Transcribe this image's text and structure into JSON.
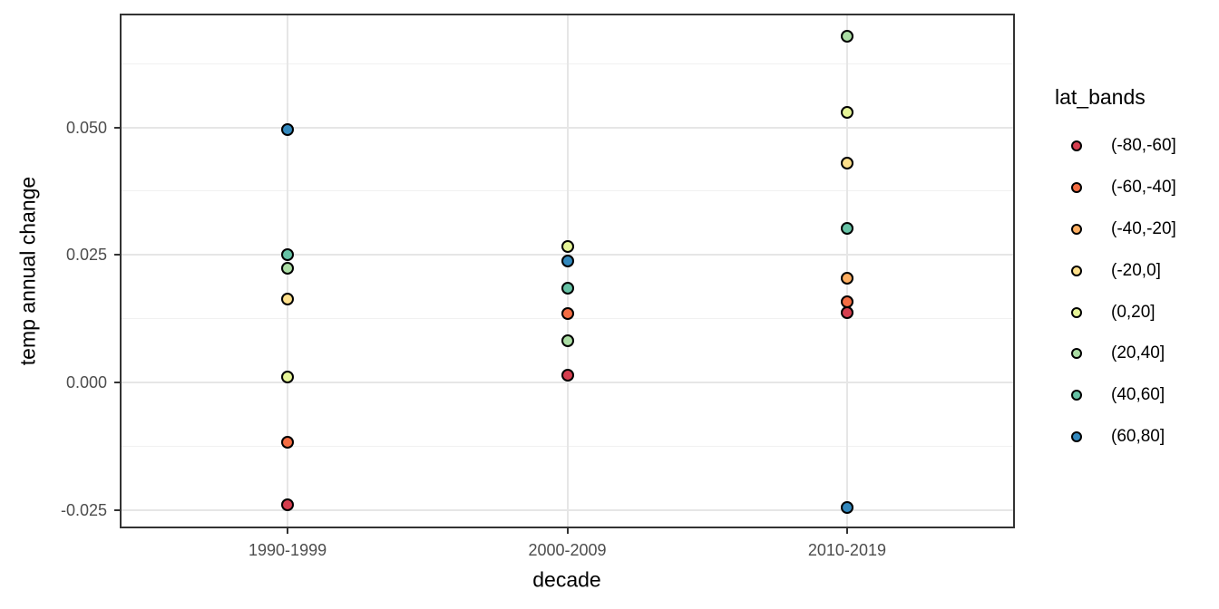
{
  "colors": {
    "background": "#ffffff",
    "panel_border": "#333333",
    "grid_major": "#e6e6e6",
    "grid_minor": "#f1f1f1",
    "tick": "#333333",
    "tick_label": "#4d4d4d",
    "text": "#000000",
    "point_stroke": "#000000"
  },
  "chart_data": {
    "type": "scatter",
    "title": "",
    "xlabel": "decade",
    "ylabel": "temp annual change",
    "categories": [
      "1990-1999",
      "2000-2009",
      "2010-2019"
    ],
    "y_ticks": [
      {
        "value": 0.05,
        "label": "0.050"
      },
      {
        "value": 0.025,
        "label": "0.025"
      },
      {
        "value": 0.0,
        "label": "0.000"
      },
      {
        "value": -0.025,
        "label": "-0.025"
      }
    ],
    "y_minor_ticks": [
      0.0625,
      0.0375,
      0.0125,
      -0.0125
    ],
    "ylim": [
      -0.0286,
      0.0723
    ],
    "grid": "major and minor horizontal, major vertical at categories",
    "legend_position": "right",
    "legend": {
      "title": "lat_bands",
      "entries": [
        {
          "label": "(-80,-60]",
          "color": "#d53e4f"
        },
        {
          "label": "(-60,-40]",
          "color": "#f46d43"
        },
        {
          "label": "(-40,-20]",
          "color": "#fdae61"
        },
        {
          "label": "(-20,0]",
          "color": "#fee08b"
        },
        {
          "label": "(0,20]",
          "color": "#e6f598"
        },
        {
          "label": "(20,40]",
          "color": "#abdda4"
        },
        {
          "label": "(40,60]",
          "color": "#66c2a5"
        },
        {
          "label": "(60,80]",
          "color": "#3288bd"
        }
      ]
    },
    "series": [
      {
        "name": "(-80,-60]",
        "color": "#d53e4f",
        "points": [
          {
            "decade": "1990-1999",
            "value": -0.024
          },
          {
            "decade": "2000-2009",
            "value": 0.0014
          },
          {
            "decade": "2010-2019",
            "value": 0.0137
          }
        ]
      },
      {
        "name": "(-60,-40]",
        "color": "#f46d43",
        "points": [
          {
            "decade": "1990-1999",
            "value": -0.0117
          },
          {
            "decade": "2000-2009",
            "value": 0.0135
          },
          {
            "decade": "2010-2019",
            "value": 0.0158
          }
        ]
      },
      {
        "name": "(-40,-20]",
        "color": "#fdae61",
        "points": [
          {
            "decade": "2010-2019",
            "value": 0.0204
          }
        ]
      },
      {
        "name": "(-20,0]",
        "color": "#fee08b",
        "points": [
          {
            "decade": "1990-1999",
            "value": 0.0163
          },
          {
            "decade": "2010-2019",
            "value": 0.043
          }
        ]
      },
      {
        "name": "(0,20]",
        "color": "#e6f598",
        "points": [
          {
            "decade": "1990-1999",
            "value": 0.001
          },
          {
            "decade": "2000-2009",
            "value": 0.0266
          },
          {
            "decade": "2010-2019",
            "value": 0.0529
          }
        ]
      },
      {
        "name": "(20,40]",
        "color": "#abdda4",
        "points": [
          {
            "decade": "1990-1999",
            "value": 0.0224
          },
          {
            "decade": "2000-2009",
            "value": 0.0082
          },
          {
            "decade": "2010-2019",
            "value": 0.0678
          }
        ]
      },
      {
        "name": "(40,60]",
        "color": "#66c2a5",
        "points": [
          {
            "decade": "1990-1999",
            "value": 0.025
          },
          {
            "decade": "2000-2009",
            "value": 0.0185
          },
          {
            "decade": "2010-2019",
            "value": 0.0302
          }
        ]
      },
      {
        "name": "(60,80]",
        "color": "#3288bd",
        "points": [
          {
            "decade": "1990-1999",
            "value": 0.0495
          },
          {
            "decade": "2000-2009",
            "value": 0.0238
          },
          {
            "decade": "2010-2019",
            "value": -0.0245
          }
        ]
      }
    ]
  }
}
